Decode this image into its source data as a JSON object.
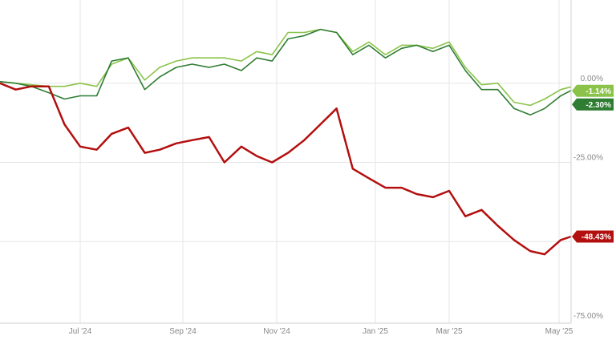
{
  "chart_data": {
    "type": "line",
    "title": "",
    "xlabel": "",
    "ylabel": "",
    "ylim": [
      -75,
      25
    ],
    "grid": true,
    "legend": "none",
    "x_ticks": [
      {
        "label": "Jul '24",
        "date": "2024-07-01"
      },
      {
        "label": "Sep '24",
        "date": "2024-09-01"
      },
      {
        "label": "Nov '24",
        "date": "2024-11-01"
      },
      {
        "label": "Jan '25",
        "date": "2025-01-01"
      },
      {
        "label": "Mar '25",
        "date": "2025-03-01"
      },
      {
        "label": "May '25",
        "date": "2025-05-01"
      }
    ],
    "y_ticks": [
      {
        "value": 0,
        "label": "0.00%"
      },
      {
        "value": -25,
        "label": "-25.00%"
      },
      {
        "value": -75,
        "label": "-75.00%"
      }
    ],
    "y_gridlines": [
      0,
      -25,
      -50
    ],
    "x": [
      "2024-05-11",
      "2024-05-21",
      "2024-05-31",
      "2024-06-11",
      "2024-06-21",
      "2024-07-01",
      "2024-07-11",
      "2024-07-20",
      "2024-07-30",
      "2024-08-09",
      "2024-08-18",
      "2024-08-28",
      "2024-09-07",
      "2024-09-18",
      "2024-09-28",
      "2024-10-09",
      "2024-10-19",
      "2024-10-29",
      "2024-11-08",
      "2024-11-18",
      "2024-11-28",
      "2024-12-08",
      "2024-12-18",
      "2024-12-28",
      "2025-01-09",
      "2025-01-22",
      "2025-02-03",
      "2025-02-16",
      "2025-03-01",
      "2025-03-10",
      "2025-03-19",
      "2025-03-28",
      "2025-04-06",
      "2025-04-15",
      "2025-04-23",
      "2025-05-02",
      "2025-05-08"
    ],
    "series": [
      {
        "color": "#8bc34a",
        "last_label": "-1.14%",
        "values": [
          0.5,
          0,
          -0.5,
          -1,
          -1,
          0,
          -1,
          6,
          8,
          1,
          5,
          7,
          8,
          8,
          8,
          7,
          10,
          9,
          16,
          16,
          17,
          16,
          10,
          13,
          9,
          12,
          12,
          11,
          13,
          5,
          -0.5,
          0,
          -6,
          -7,
          -5,
          -2,
          -1.14
        ]
      },
      {
        "color": "#2e7d32",
        "last_label": "-2.30%",
        "values": [
          0.5,
          0,
          -1,
          -3,
          -5,
          -4,
          -4,
          7,
          8,
          -2,
          2,
          5,
          6,
          5,
          6,
          4,
          8,
          7,
          14,
          15,
          17,
          16,
          9,
          12,
          8,
          11,
          12,
          10,
          12,
          4,
          -2,
          -2,
          -8,
          -10,
          -8,
          -4,
          -2.3
        ]
      },
      {
        "color": "#b30f0f",
        "last_label": "-48.43%",
        "values": [
          0,
          -2,
          -1,
          -1,
          -13,
          -20,
          -21,
          -16,
          -14,
          -22,
          -21,
          -19,
          -18,
          -17,
          -25,
          -20,
          -23,
          -25,
          -22,
          -18,
          -13,
          -8,
          -27,
          -30,
          -33,
          -33,
          -35,
          -36,
          -34,
          -42,
          -40,
          -45,
          -49.5,
          -53,
          -54,
          -49.5,
          -48.43
        ]
      }
    ]
  }
}
